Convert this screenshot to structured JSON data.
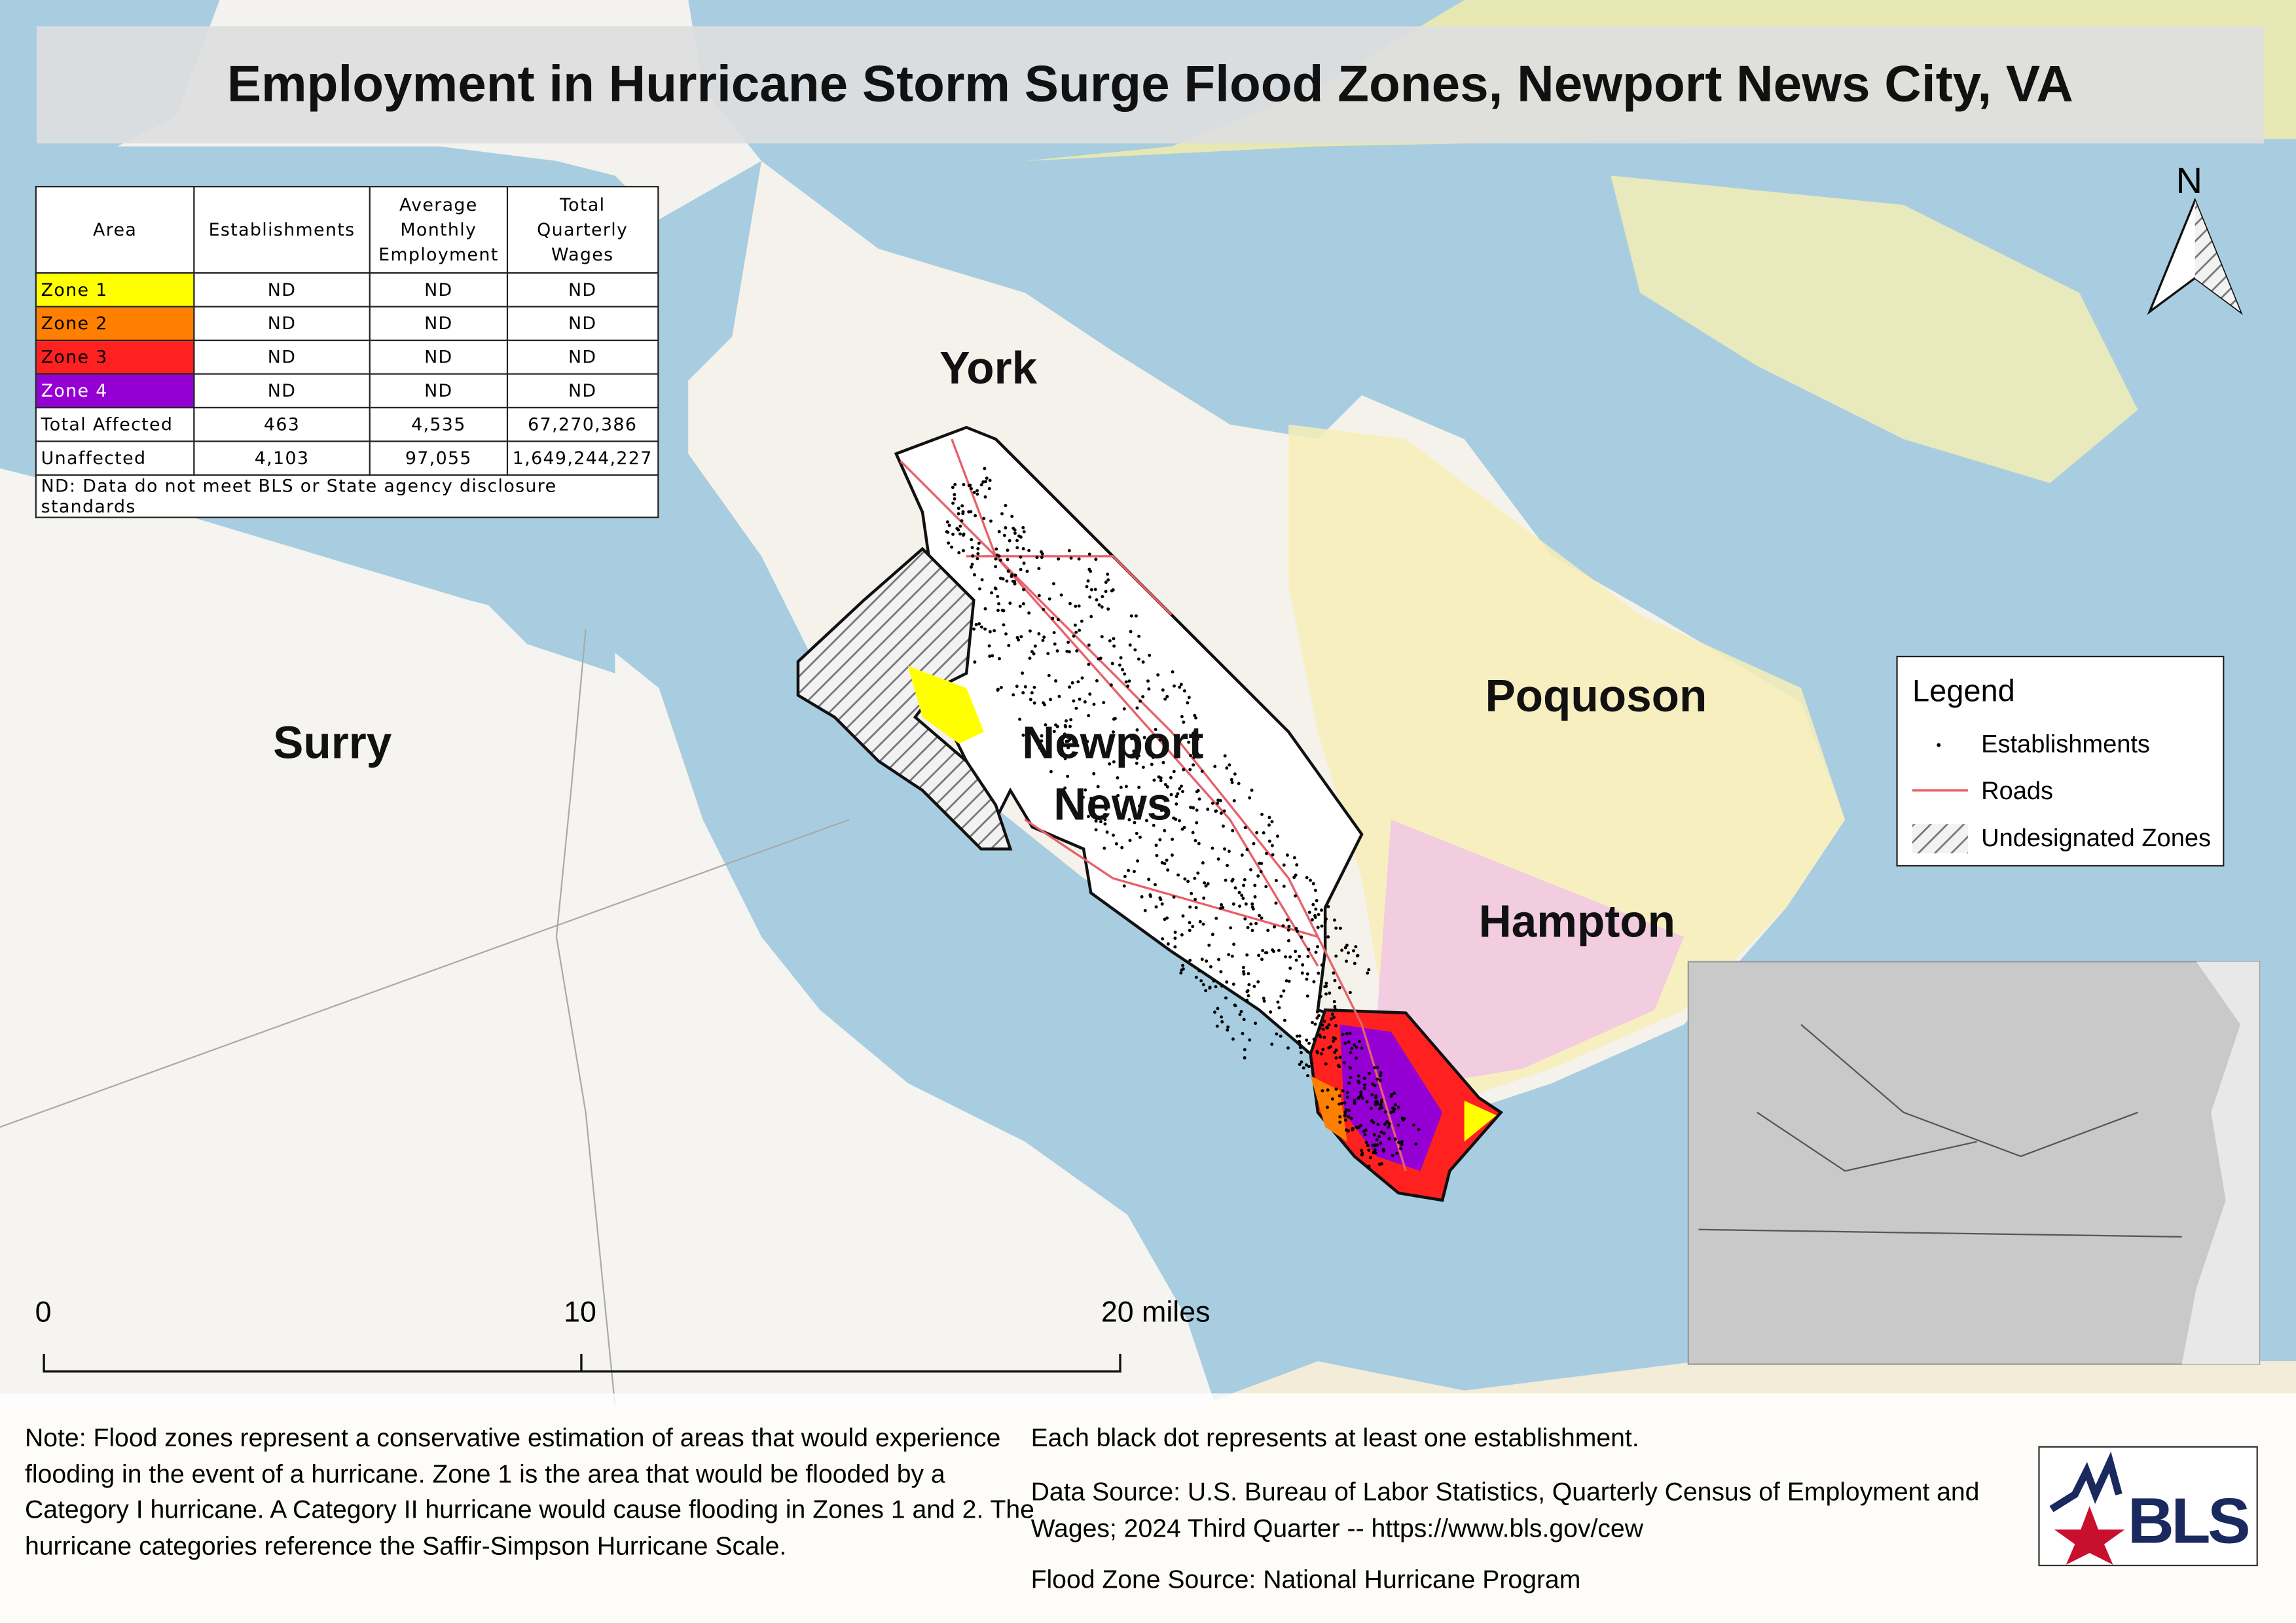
{
  "header": {
    "title": "Employment in Hurricane Storm Surge Flood Zones, Newport News City, VA"
  },
  "table": {
    "columns": [
      "Area",
      "Establishments",
      "Average Monthly Employment",
      "Total Quarterly Wages"
    ],
    "rows": [
      [
        "Zone 1",
        "ND",
        "ND",
        "ND"
      ],
      [
        "Zone 2",
        "ND",
        "ND",
        "ND"
      ],
      [
        "Zone 3",
        "ND",
        "ND",
        "ND"
      ],
      [
        "Zone 4",
        "ND",
        "ND",
        "ND"
      ],
      [
        "Total Affected",
        "463",
        "4,535",
        "67,270,386"
      ],
      [
        "Unaffected",
        "4,103",
        "97,055",
        "1,649,244,227"
      ]
    ],
    "footnote": "ND: Data do not meet BLS or State agency disclosure standards"
  },
  "places": {
    "york": "York",
    "surry": "Surry",
    "newport_news": [
      "Newport",
      "News"
    ],
    "poquoson": "Poquoson",
    "hampton": "Hampton"
  },
  "north": "N",
  "legend": {
    "title": "Legend",
    "items": [
      "Establishments",
      "Roads",
      "Undesignated Zones"
    ]
  },
  "scale_bar": [
    "0",
    "10",
    "20 miles"
  ],
  "notes": {
    "left": "Note: Flood zones represent a conservative estimation of areas that would experience flooding in the event of a hurricane. Zone 1 is the area that would be flooded by a Category I hurricane. A Category II hurricane would cause flooding in Zones 1 and 2. The hurricane categories reference the Saffir-Simpson Hurricane Scale.",
    "right": [
      "Each black dot represents at least one establishment.",
      "Data Source: U.S. Bureau of Labor Statistics, Quarterly Census of Employment and Wages; 2024 Third Quarter -- https://www.bls.gov/cew",
      "Flood Zone Source: National Hurricane Program"
    ]
  },
  "logo": "BLS"
}
